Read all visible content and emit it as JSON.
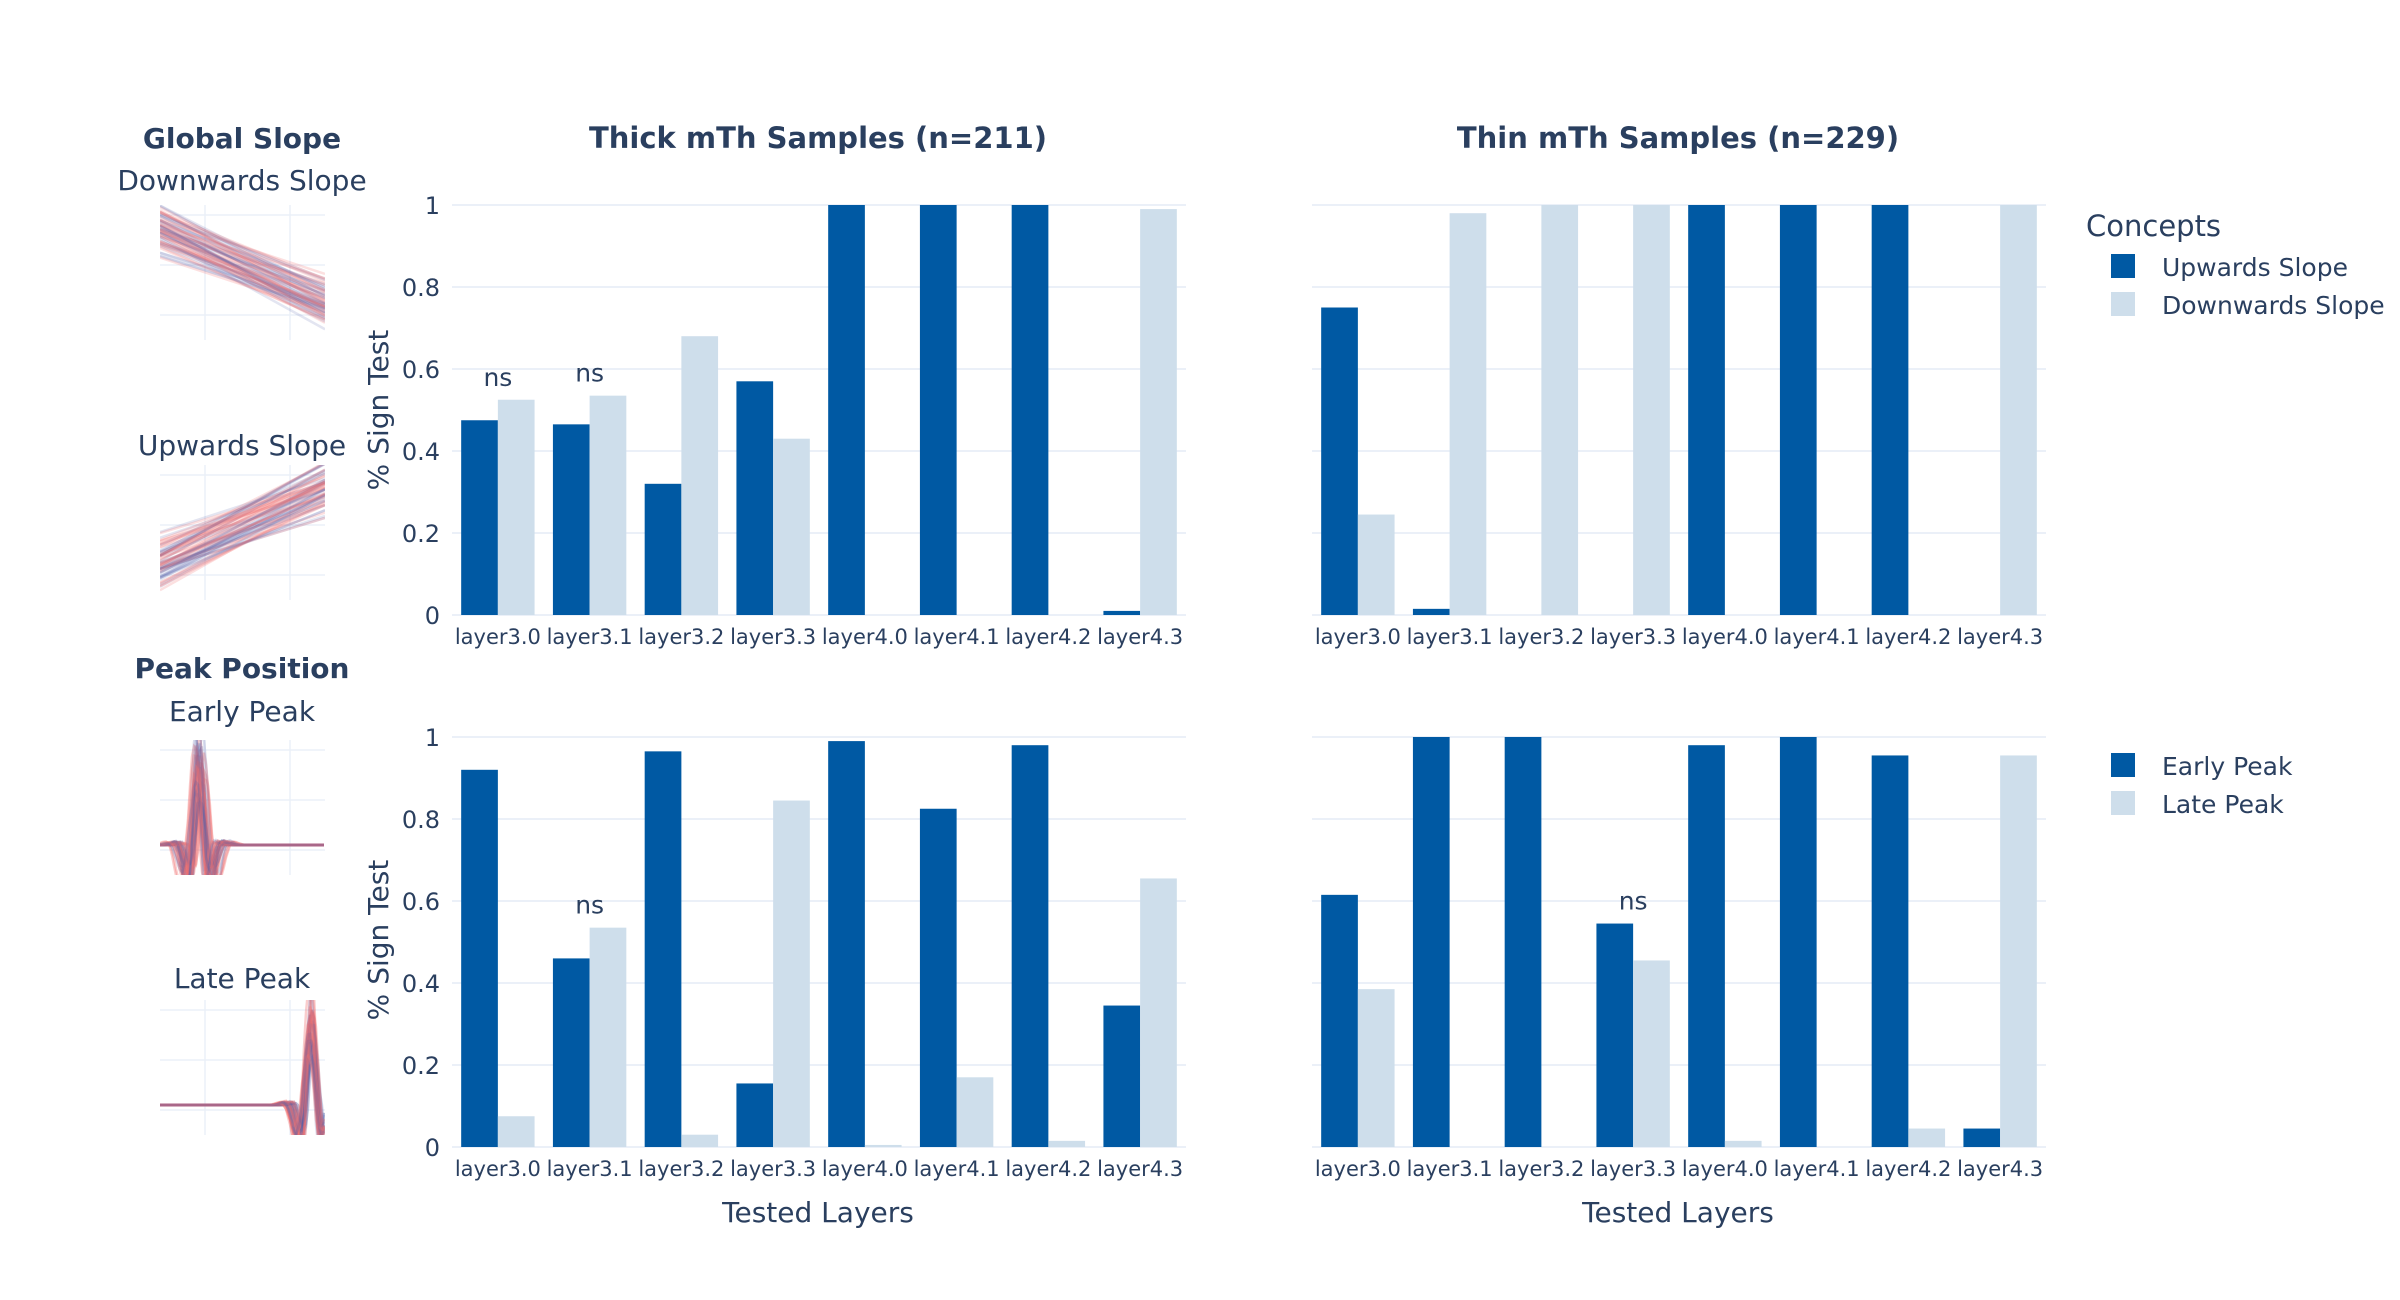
{
  "colors": {
    "primary": "#0059A3",
    "secondary": "#CEDEEB",
    "text": "#2A3F5F",
    "grid": "#EBF0F8",
    "thumb_red": "#F07070",
    "thumb_blue": "#5060A8"
  },
  "thumbnails": {
    "section1": {
      "title": "Global Slope",
      "items": [
        {
          "label": "Downwards Slope",
          "icon": "downward-lines-icon"
        },
        {
          "label": "Upwards Slope",
          "icon": "upward-lines-icon"
        }
      ]
    },
    "section2": {
      "title": "Peak Position",
      "items": [
        {
          "label": "Early Peak",
          "icon": "early-peak-icon"
        },
        {
          "label": "Late Peak",
          "icon": "late-peak-icon"
        }
      ]
    }
  },
  "column_titles": [
    "Thick mTh Samples (n=211)",
    "Thin mTh Samples (n=229)"
  ],
  "ylabel": "% Sign Test",
  "xlabel": "Tested Layers",
  "legend_title": "Concepts",
  "chart_data": [
    {
      "type": "bar",
      "row": "Global Slope",
      "column": "Thick mTh Samples (n=211)",
      "categories": [
        "layer3.0",
        "layer3.1",
        "layer3.2",
        "layer3.3",
        "layer4.0",
        "layer4.1",
        "layer4.2",
        "layer4.3"
      ],
      "series": [
        {
          "name": "Upwards Slope",
          "values": [
            0.475,
            0.465,
            0.32,
            0.57,
            1.0,
            1.0,
            1.0,
            0.01
          ]
        },
        {
          "name": "Downwards Slope",
          "values": [
            0.525,
            0.535,
            0.68,
            0.43,
            0.0,
            0.0,
            0.0,
            0.99
          ]
        }
      ],
      "annotations": [
        {
          "category": "layer3.0",
          "text": "ns"
        },
        {
          "category": "layer3.1",
          "text": "ns"
        }
      ],
      "ylim": [
        0,
        1
      ],
      "yticks": [
        "0",
        "0.2",
        "0.4",
        "0.6",
        "0.8",
        "1"
      ]
    },
    {
      "type": "bar",
      "row": "Global Slope",
      "column": "Thin mTh Samples (n=229)",
      "categories": [
        "layer3.0",
        "layer3.1",
        "layer3.2",
        "layer3.3",
        "layer4.0",
        "layer4.1",
        "layer4.2",
        "layer4.3"
      ],
      "series": [
        {
          "name": "Upwards Slope",
          "values": [
            0.75,
            0.015,
            0.0,
            0.0,
            1.0,
            1.0,
            1.0,
            0.0
          ]
        },
        {
          "name": "Downwards Slope",
          "values": [
            0.245,
            0.98,
            1.0,
            1.0,
            0.0,
            0.0,
            0.0,
            1.0
          ]
        }
      ],
      "annotations": [],
      "ylim": [
        0,
        1
      ]
    },
    {
      "type": "bar",
      "row": "Peak Position",
      "column": "Thick mTh Samples (n=211)",
      "categories": [
        "layer3.0",
        "layer3.1",
        "layer3.2",
        "layer3.3",
        "layer4.0",
        "layer4.1",
        "layer4.2",
        "layer4.3"
      ],
      "series": [
        {
          "name": "Early Peak",
          "values": [
            0.92,
            0.46,
            0.965,
            0.155,
            0.99,
            0.825,
            0.98,
            0.345
          ]
        },
        {
          "name": "Late Peak",
          "values": [
            0.075,
            0.535,
            0.03,
            0.845,
            0.005,
            0.17,
            0.015,
            0.655
          ]
        }
      ],
      "annotations": [
        {
          "category": "layer3.1",
          "text": "ns"
        }
      ],
      "ylim": [
        0,
        1
      ],
      "yticks": [
        "0",
        "0.2",
        "0.4",
        "0.6",
        "0.8",
        "1"
      ]
    },
    {
      "type": "bar",
      "row": "Peak Position",
      "column": "Thin mTh Samples (n=229)",
      "categories": [
        "layer3.0",
        "layer3.1",
        "layer3.2",
        "layer3.3",
        "layer4.0",
        "layer4.1",
        "layer4.2",
        "layer4.3"
      ],
      "series": [
        {
          "name": "Early Peak",
          "values": [
            0.615,
            1.0,
            1.0,
            0.545,
            0.98,
            1.0,
            0.955,
            0.045
          ]
        },
        {
          "name": "Late Peak",
          "values": [
            0.385,
            0.0,
            0.0,
            0.455,
            0.015,
            0.0,
            0.045,
            0.955
          ]
        }
      ],
      "annotations": [
        {
          "category": "layer3.3",
          "text": "ns"
        }
      ],
      "ylim": [
        0,
        1
      ]
    }
  ]
}
